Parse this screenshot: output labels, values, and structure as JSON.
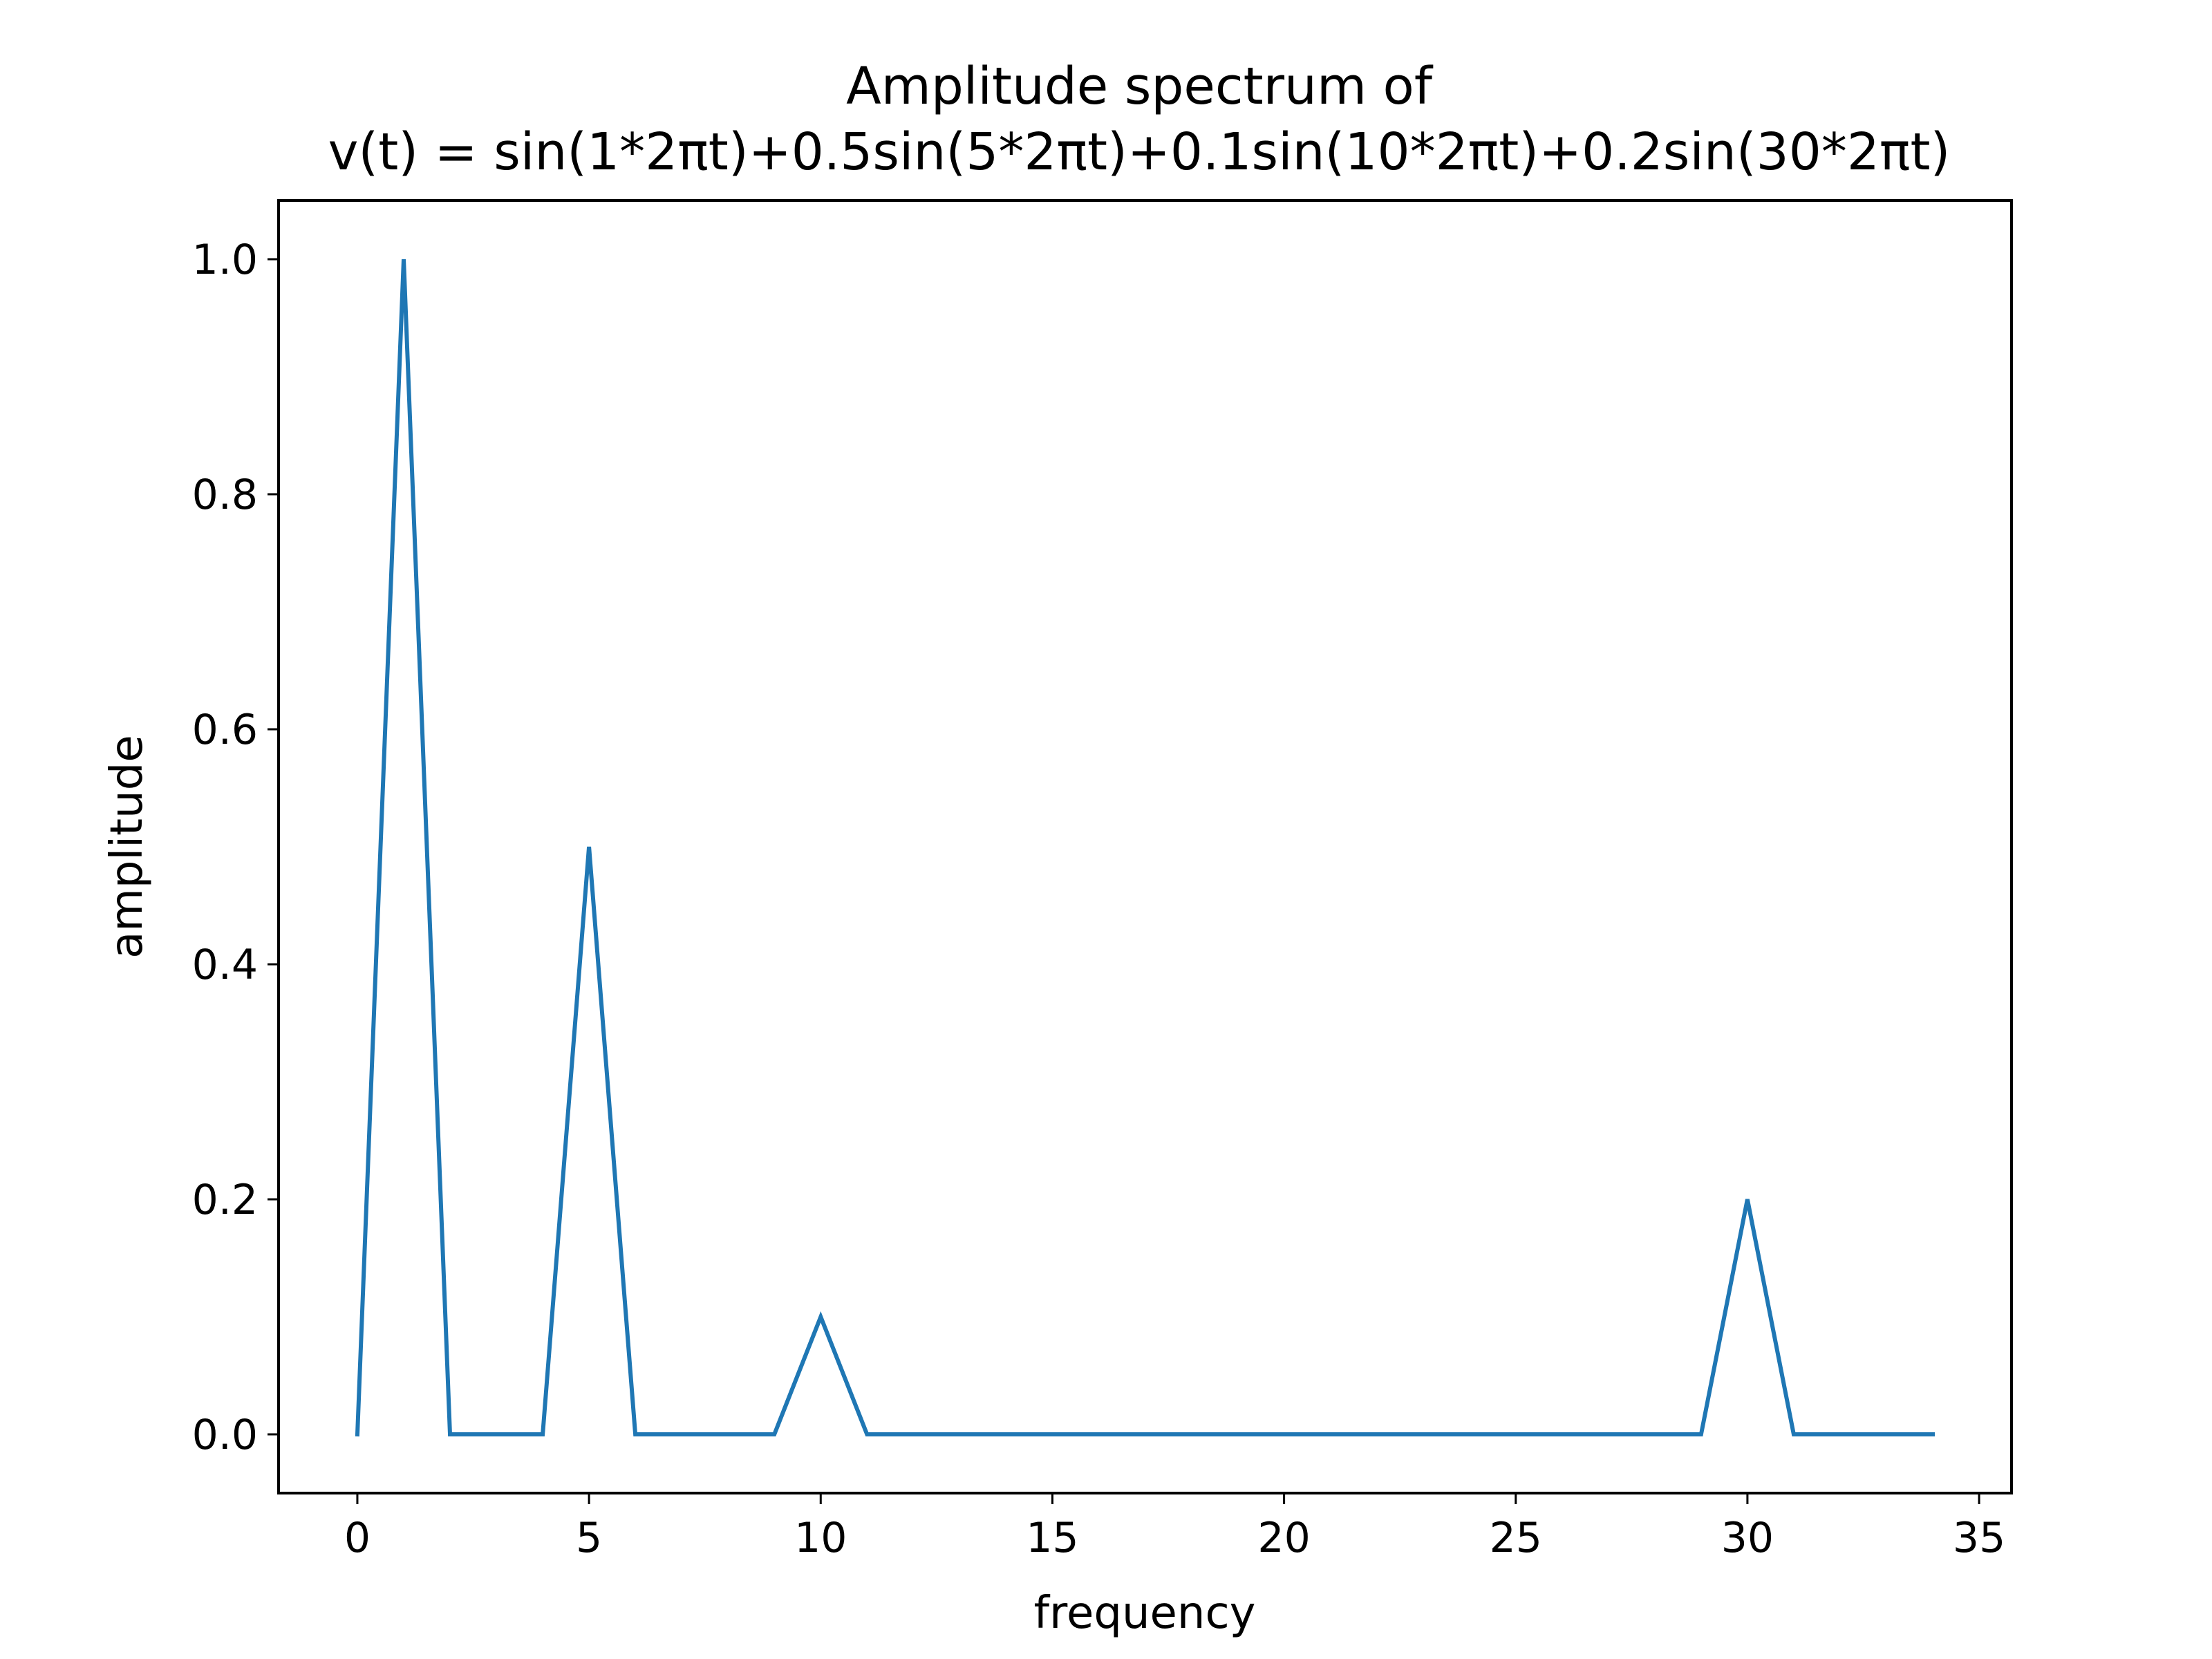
{
  "chart_data": {
    "type": "line",
    "title_line1": "Amplitude spectrum of",
    "title_line2": "v(t) = sin(1*2πt)+0.5sin(5*2πt)+0.1sin(10*2πt)+0.2sin(30*2πt)",
    "xlabel": "frequency",
    "ylabel": "amplitude",
    "xlim": [
      -1.7,
      35.7
    ],
    "ylim": [
      -0.05,
      1.05
    ],
    "xticks": [
      0,
      5,
      10,
      15,
      20,
      25,
      30,
      35
    ],
    "xtick_labels": [
      "0",
      "5",
      "10",
      "15",
      "20",
      "25",
      "30",
      "35"
    ],
    "yticks": [
      0.0,
      0.2,
      0.4,
      0.6,
      0.8,
      1.0
    ],
    "ytick_labels": [
      "0.0",
      "0.2",
      "0.4",
      "0.6",
      "0.8",
      "1.0"
    ],
    "grid": false,
    "line_color": "#1f77b4",
    "series": [
      {
        "x": [
          0,
          1,
          2,
          3,
          4,
          5,
          6,
          7,
          8,
          9,
          10,
          11,
          12,
          13,
          14,
          15,
          16,
          17,
          18,
          19,
          20,
          21,
          22,
          23,
          24,
          25,
          26,
          27,
          28,
          29,
          30,
          31,
          32,
          33,
          34
        ],
        "values": [
          0,
          1.0,
          0,
          0,
          0,
          0.5,
          0,
          0,
          0,
          0,
          0.1,
          0,
          0,
          0,
          0,
          0,
          0,
          0,
          0,
          0,
          0,
          0,
          0,
          0,
          0,
          0,
          0,
          0,
          0,
          0,
          0.2,
          0,
          0,
          0,
          0
        ]
      }
    ]
  }
}
